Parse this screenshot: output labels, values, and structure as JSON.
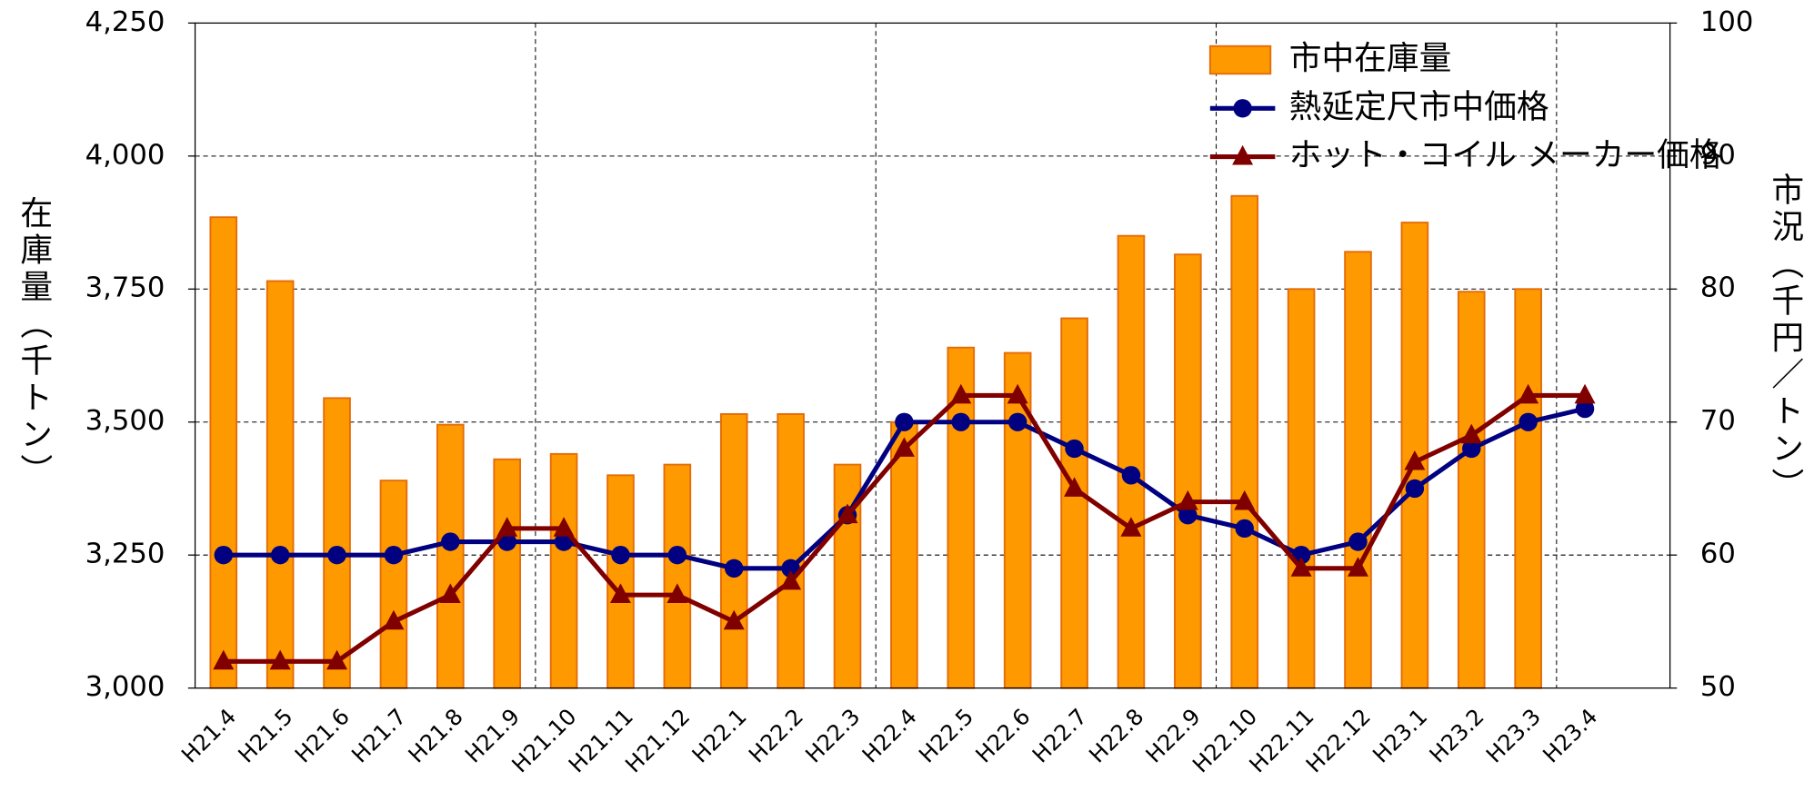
{
  "chart_data": {
    "type": "bar-line",
    "y_label": "在庫量（千トン）",
    "y2_label": "市況（千円／トン）",
    "categories": [
      "H21.4",
      "H21.5",
      "H21.6",
      "H21.7",
      "H21.8",
      "H21.9",
      "H21.10",
      "H21.11",
      "H21.12",
      "H22.1",
      "H22.2",
      "H22.3",
      "H22.4",
      "H22.5",
      "H22.6",
      "H22.7",
      "H22.8",
      "H22.9",
      "H22.10",
      "H22.11",
      "H22.12",
      "H23.1",
      "H23.2",
      "H23.3",
      "H23.4"
    ],
    "series": [
      {
        "name": "市中在庫量",
        "type": "bar",
        "color": "#ff9900",
        "axis": "y",
        "values": [
          3885,
          3765,
          3545,
          3390,
          3495,
          3430,
          3440,
          3400,
          3420,
          3515,
          3515,
          3420,
          3500,
          3640,
          3630,
          3695,
          3850,
          3815,
          3925,
          3750,
          3820,
          3875,
          3745,
          3750,
          null
        ]
      },
      {
        "name": "熱延定尺市中価格",
        "type": "line",
        "marker": "circle",
        "color": "#000080",
        "axis": "y2",
        "values": [
          60,
          60,
          60,
          60,
          61,
          61,
          61,
          60,
          60,
          59,
          59,
          63,
          70,
          70,
          70,
          68,
          66,
          63,
          62,
          60,
          61,
          65,
          68,
          70,
          71
        ]
      },
      {
        "name": "ホット・コイル メーカー価格",
        "type": "line",
        "marker": "triangle",
        "color": "#800000",
        "axis": "y2",
        "values": [
          52,
          52,
          52,
          55,
          57,
          62,
          62,
          57,
          57,
          55,
          58,
          63,
          68,
          72,
          72,
          65,
          62,
          64,
          64,
          59,
          59,
          67,
          69,
          72,
          72
        ]
      }
    ],
    "ylim": [
      3000,
      4250
    ],
    "yticks": [
      {
        "value": 3000,
        "label": "3,000"
      },
      {
        "value": 3250,
        "label": "3,250"
      },
      {
        "value": 3500,
        "label": "3,500"
      },
      {
        "value": 3750,
        "label": "3,750"
      },
      {
        "value": 4000,
        "label": "4,000"
      },
      {
        "value": 4250,
        "label": "4,250"
      }
    ],
    "y2lim": [
      50,
      100
    ],
    "y2ticks": [
      50,
      60,
      70,
      80,
      90,
      100
    ],
    "grid": true,
    "legend": "upper-right"
  }
}
